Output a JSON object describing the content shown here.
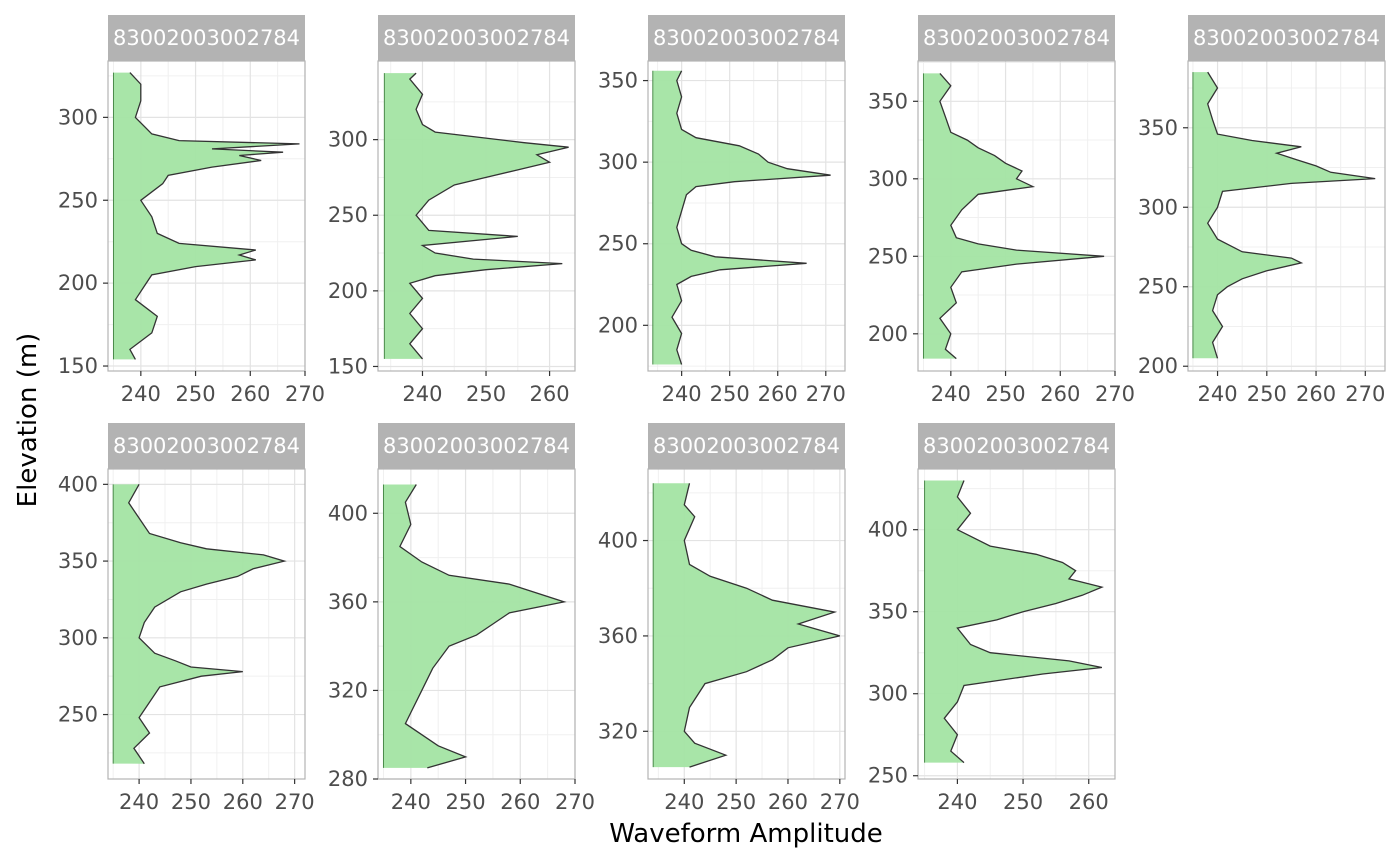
{
  "chart_data": {
    "type": "area",
    "xlabel": "Waveform Amplitude",
    "ylabel": "Elevation (m)",
    "grid": true,
    "fill_color": "#a3e4a3",
    "line_color": "#333333",
    "strip_color": "#b3b3b3",
    "panels": [
      {
        "strip": "83002003002784",
        "xlim": [
          234,
          270
        ],
        "xticks": [
          240,
          250,
          260,
          270
        ],
        "ylim": [
          147,
          334
        ],
        "yticks": [
          150,
          200,
          250,
          300
        ],
        "baseline": 235,
        "profile": [
          [
            154,
            239
          ],
          [
            160,
            238
          ],
          [
            170,
            242
          ],
          [
            180,
            243
          ],
          [
            190,
            239
          ],
          [
            200,
            241
          ],
          [
            205,
            242
          ],
          [
            210,
            250
          ],
          [
            214,
            261
          ],
          [
            217,
            258
          ],
          [
            220,
            261
          ],
          [
            224,
            247
          ],
          [
            230,
            243
          ],
          [
            240,
            242
          ],
          [
            250,
            240
          ],
          [
            260,
            244
          ],
          [
            265,
            245
          ],
          [
            270,
            253
          ],
          [
            274,
            262
          ],
          [
            277,
            258
          ],
          [
            279,
            266
          ],
          [
            281,
            253
          ],
          [
            284,
            269
          ],
          [
            286,
            247
          ],
          [
            290,
            242
          ],
          [
            300,
            239
          ],
          [
            310,
            240
          ],
          [
            320,
            240
          ],
          [
            327,
            238
          ]
        ]
      },
      {
        "strip": "83002003002784",
        "xlim": [
          233,
          264
        ],
        "xticks": [
          240,
          250,
          260
        ],
        "ylim": [
          147,
          352
        ],
        "yticks": [
          150,
          200,
          250,
          300
        ],
        "baseline": 234,
        "profile": [
          [
            155,
            240
          ],
          [
            165,
            238
          ],
          [
            175,
            240
          ],
          [
            185,
            238
          ],
          [
            195,
            240
          ],
          [
            205,
            238
          ],
          [
            210,
            242
          ],
          [
            214,
            250
          ],
          [
            218,
            262
          ],
          [
            221,
            248
          ],
          [
            225,
            242
          ],
          [
            230,
            240
          ],
          [
            236,
            255
          ],
          [
            240,
            241
          ],
          [
            250,
            239
          ],
          [
            260,
            241
          ],
          [
            270,
            245
          ],
          [
            275,
            250
          ],
          [
            280,
            255
          ],
          [
            285,
            260
          ],
          [
            290,
            258
          ],
          [
            295,
            263
          ],
          [
            298,
            256
          ],
          [
            302,
            248
          ],
          [
            305,
            242
          ],
          [
            310,
            240
          ],
          [
            320,
            239
          ],
          [
            330,
            240
          ],
          [
            340,
            238
          ],
          [
            344,
            239
          ]
        ]
      },
      {
        "strip": "83002003002784",
        "xlim": [
          233,
          274
        ],
        "xticks": [
          240,
          250,
          260,
          270
        ],
        "ylim": [
          172,
          362
        ],
        "yticks": [
          200,
          250,
          300,
          350
        ],
        "baseline": 234,
        "profile": [
          [
            176,
            240
          ],
          [
            185,
            239
          ],
          [
            195,
            240
          ],
          [
            205,
            238
          ],
          [
            215,
            240
          ],
          [
            225,
            239
          ],
          [
            230,
            242
          ],
          [
            234,
            248
          ],
          [
            238,
            266
          ],
          [
            242,
            247
          ],
          [
            246,
            242
          ],
          [
            250,
            240
          ],
          [
            260,
            239
          ],
          [
            270,
            240
          ],
          [
            280,
            241
          ],
          [
            285,
            243
          ],
          [
            288,
            251
          ],
          [
            292,
            271
          ],
          [
            296,
            262
          ],
          [
            300,
            258
          ],
          [
            305,
            256
          ],
          [
            310,
            252
          ],
          [
            315,
            243
          ],
          [
            320,
            240
          ],
          [
            330,
            239
          ],
          [
            340,
            240
          ],
          [
            350,
            239
          ],
          [
            356,
            240
          ]
        ]
      },
      {
        "strip": "83002003002784",
        "xlim": [
          234,
          270
        ],
        "xticks": [
          240,
          250,
          260,
          270
        ],
        "ylim": [
          176,
          376
        ],
        "yticks": [
          200,
          250,
          300,
          350
        ],
        "baseline": 235,
        "profile": [
          [
            184,
            241
          ],
          [
            190,
            239
          ],
          [
            200,
            240
          ],
          [
            210,
            238
          ],
          [
            220,
            241
          ],
          [
            230,
            240
          ],
          [
            240,
            242
          ],
          [
            245,
            252
          ],
          [
            250,
            268
          ],
          [
            254,
            252
          ],
          [
            258,
            245
          ],
          [
            262,
            241
          ],
          [
            270,
            240
          ],
          [
            280,
            242
          ],
          [
            290,
            245
          ],
          [
            295,
            255
          ],
          [
            300,
            252
          ],
          [
            305,
            253
          ],
          [
            310,
            250
          ],
          [
            315,
            248
          ],
          [
            320,
            245
          ],
          [
            325,
            243
          ],
          [
            330,
            240
          ],
          [
            340,
            239
          ],
          [
            350,
            238
          ],
          [
            360,
            240
          ],
          [
            368,
            238
          ]
        ]
      },
      {
        "strip": "83002003002784",
        "xlim": [
          234,
          274
        ],
        "xticks": [
          240,
          250,
          260,
          270
        ],
        "ylim": [
          197,
          392
        ],
        "yticks": [
          200,
          250,
          300,
          350
        ],
        "baseline": 235,
        "profile": [
          [
            205,
            240
          ],
          [
            215,
            239
          ],
          [
            225,
            241
          ],
          [
            235,
            239
          ],
          [
            245,
            240
          ],
          [
            250,
            242
          ],
          [
            255,
            245
          ],
          [
            260,
            250
          ],
          [
            265,
            257
          ],
          [
            268,
            255
          ],
          [
            272,
            245
          ],
          [
            280,
            240
          ],
          [
            290,
            238
          ],
          [
            300,
            240
          ],
          [
            310,
            241
          ],
          [
            315,
            255
          ],
          [
            318,
            272
          ],
          [
            322,
            263
          ],
          [
            326,
            260
          ],
          [
            330,
            256
          ],
          [
            334,
            252
          ],
          [
            338,
            257
          ],
          [
            342,
            247
          ],
          [
            346,
            240
          ],
          [
            355,
            239
          ],
          [
            365,
            238
          ],
          [
            375,
            240
          ],
          [
            385,
            238
          ]
        ]
      },
      {
        "strip": "83002003002784",
        "xlim": [
          234,
          272
        ],
        "xticks": [
          240,
          250,
          260,
          270
        ],
        "ylim": [
          208,
          410
        ],
        "yticks": [
          250,
          300,
          350,
          400
        ],
        "baseline": 235,
        "profile": [
          [
            218,
            241
          ],
          [
            228,
            239
          ],
          [
            238,
            242
          ],
          [
            248,
            240
          ],
          [
            258,
            242
          ],
          [
            268,
            244
          ],
          [
            275,
            252
          ],
          [
            278,
            260
          ],
          [
            281,
            250
          ],
          [
            285,
            247
          ],
          [
            290,
            243
          ],
          [
            300,
            240
          ],
          [
            310,
            241
          ],
          [
            320,
            243
          ],
          [
            330,
            248
          ],
          [
            335,
            253
          ],
          [
            340,
            259
          ],
          [
            345,
            262
          ],
          [
            350,
            268
          ],
          [
            354,
            264
          ],
          [
            358,
            253
          ],
          [
            362,
            248
          ],
          [
            368,
            242
          ],
          [
            378,
            240
          ],
          [
            388,
            238
          ],
          [
            400,
            240
          ]
        ]
      },
      {
        "strip": "83002003002784",
        "xlim": [
          234,
          270
        ],
        "xticks": [
          240,
          250,
          260,
          270
        ],
        "ylim": [
          280,
          420
        ],
        "yticks": [
          280,
          320,
          360,
          400
        ],
        "baseline": 235,
        "profile": [
          [
            285,
            243
          ],
          [
            290,
            250
          ],
          [
            295,
            245
          ],
          [
            300,
            242
          ],
          [
            305,
            239
          ],
          [
            310,
            240
          ],
          [
            320,
            242
          ],
          [
            330,
            244
          ],
          [
            340,
            247
          ],
          [
            345,
            252
          ],
          [
            350,
            255
          ],
          [
            355,
            258
          ],
          [
            360,
            268
          ],
          [
            364,
            263
          ],
          [
            368,
            258
          ],
          [
            372,
            247
          ],
          [
            378,
            242
          ],
          [
            385,
            238
          ],
          [
            395,
            240
          ],
          [
            405,
            239
          ],
          [
            413,
            241
          ]
        ]
      },
      {
        "strip": "83002003002784",
        "xlim": [
          233,
          271
        ],
        "xticks": [
          240,
          250,
          260,
          270
        ],
        "ylim": [
          300,
          430
        ],
        "yticks": [
          320,
          360,
          400
        ],
        "baseline": 234,
        "profile": [
          [
            305,
            241
          ],
          [
            310,
            248
          ],
          [
            315,
            242
          ],
          [
            320,
            240
          ],
          [
            330,
            241
          ],
          [
            340,
            244
          ],
          [
            345,
            252
          ],
          [
            350,
            257
          ],
          [
            355,
            260
          ],
          [
            360,
            270
          ],
          [
            365,
            262
          ],
          [
            370,
            269
          ],
          [
            375,
            257
          ],
          [
            380,
            252
          ],
          [
            385,
            245
          ],
          [
            390,
            241
          ],
          [
            400,
            240
          ],
          [
            410,
            242
          ],
          [
            415,
            240
          ],
          [
            424,
            241
          ]
        ]
      },
      {
        "strip": "83002003002784",
        "xlim": [
          234,
          264
        ],
        "xticks": [
          240,
          250,
          260
        ],
        "ylim": [
          248,
          437
        ],
        "yticks": [
          250,
          300,
          350,
          400
        ],
        "baseline": 235,
        "profile": [
          [
            258,
            241
          ],
          [
            265,
            239
          ],
          [
            275,
            240
          ],
          [
            285,
            238
          ],
          [
            295,
            240
          ],
          [
            305,
            241
          ],
          [
            312,
            253
          ],
          [
            316,
            262
          ],
          [
            320,
            257
          ],
          [
            325,
            245
          ],
          [
            330,
            242
          ],
          [
            340,
            240
          ],
          [
            345,
            246
          ],
          [
            350,
            250
          ],
          [
            355,
            255
          ],
          [
            360,
            259
          ],
          [
            365,
            262
          ],
          [
            370,
            257
          ],
          [
            375,
            258
          ],
          [
            380,
            256
          ],
          [
            385,
            252
          ],
          [
            390,
            245
          ],
          [
            400,
            240
          ],
          [
            410,
            242
          ],
          [
            420,
            240
          ],
          [
            430,
            241
          ]
        ]
      }
    ]
  }
}
